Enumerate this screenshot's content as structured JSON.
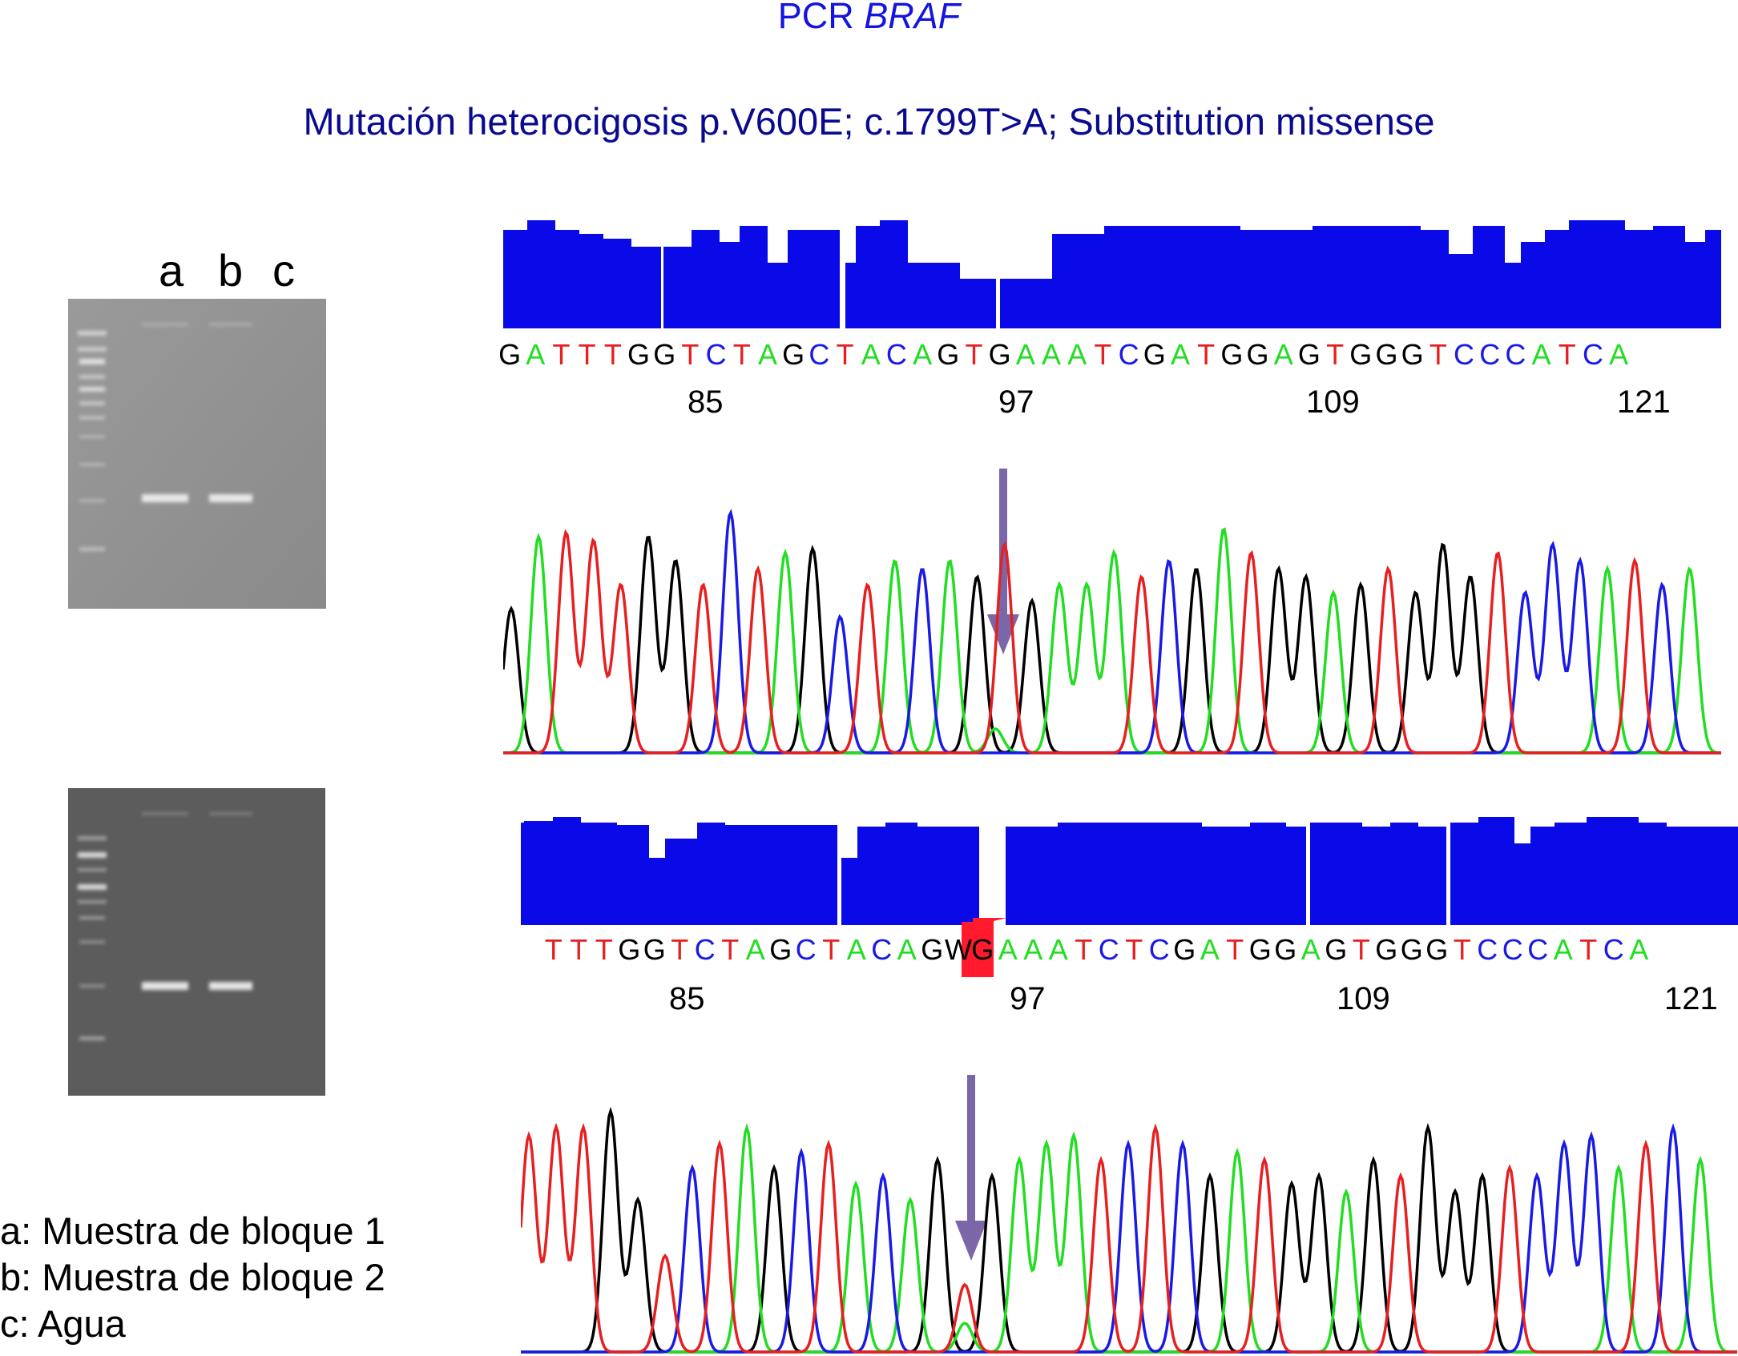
{
  "title": {
    "prefix": "PCR ",
    "gene": "BRAF"
  },
  "subtitle": "Mutación heterocigosis p.V600E; c.1799T>A; Substitution missense",
  "gel_lanes": [
    "a",
    "b",
    "c"
  ],
  "legend": [
    "a: Muestra de bloque 1",
    "b: Muestra de bloque 2",
    "c: Agua"
  ],
  "colors": {
    "A": "#22dd22",
    "C": "#1a1ae6",
    "G": "#000000",
    "T": "#e62020",
    "W": "#000000",
    "quality": "#0a0ae8",
    "arrow": "#7b66a8",
    "het_mark": "#ff1a2e"
  },
  "panel1": {
    "sequence": "GATTTGGTCTAGCTACAGTGAAATCGATGGAGTGGGTCCCATCA",
    "positions": [
      "85",
      "97",
      "109",
      "121"
    ]
  },
  "panel2": {
    "sequence": "TTTGGTCTAGCTACAGWGAAATCTCGATGGAGTGGGTCCCATCA",
    "positions": [
      "85",
      "97",
      "109",
      "121"
    ],
    "highlight_index": 16
  }
}
